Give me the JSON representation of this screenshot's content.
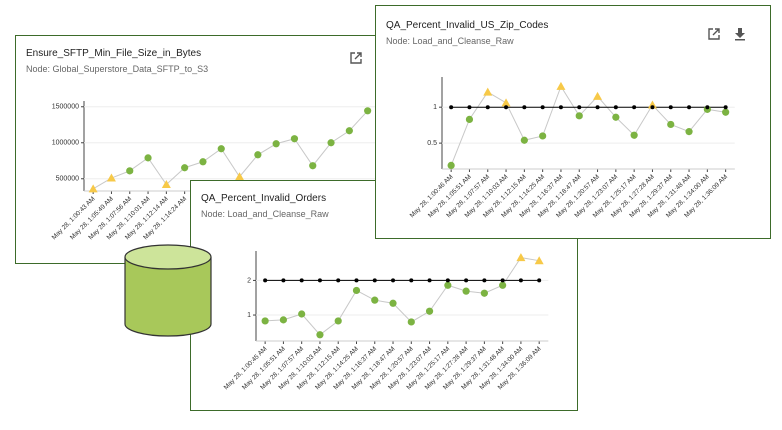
{
  "chart_data": [
    {
      "type": "line",
      "title": "Ensure_SFTP_Min_File_Size_in_Bytes",
      "subtitle": "Node: Global_Superstore_Data_SFTP_to_S3",
      "categories": [
        "May 28, 1:00:43 AM",
        "May 28, 1:05:49 AM",
        "May 28, 1:07:56 AM",
        "May 28, 1:10:01 AM",
        "May 28, 1:12:14 AM",
        "May 28, 1:14:24 AM",
        null,
        null,
        null,
        null,
        null,
        null,
        null,
        null,
        null,
        null
      ],
      "series": [
        {
          "color": "#c8c8c8",
          "values": [
            360000,
            510000,
            610000,
            790000,
            420000,
            653000,
            736000,
            917000,
            528000,
            833000,
            986000,
            1056000,
            681000,
            1000000,
            1167000,
            1444000
          ],
          "markers": [
            "triangle",
            "triangle",
            "circle",
            "circle",
            "triangle",
            "circle",
            "circle",
            "circle",
            "triangle",
            "circle",
            "circle",
            "circle",
            "circle",
            "circle",
            "circle",
            "circle"
          ]
        }
      ],
      "marker_colors": {
        "circle": "#7cb342",
        "triangle": "#f7c948",
        "dot": "#000000"
      },
      "ylim": [
        330000,
        1580000
      ],
      "yticks": [
        500000,
        1000000,
        1500000
      ],
      "grid": true
    },
    {
      "type": "line",
      "title": "QA_Percent_Invalid_Orders",
      "subtitle": "Node: Load_and_Cleanse_Raw",
      "categories": [
        "May 28, 1:00:45 AM",
        "May 28, 1:05:51 AM",
        "May 28, 1:07:57 AM",
        "May 28, 1:10:03 AM",
        "May 28, 1:12:15 AM",
        "May 28, 1:14:25 AM",
        "May 28, 1:16:37 AM",
        "May 28, 1:18:47 AM",
        "May 28, 1:20:57 AM",
        "May 28, 1:23:07 AM",
        "May 28, 1:25:17 AM",
        "May 28, 1:27:28 AM",
        "May 28, 1:29:37 AM",
        "May 28, 1:31:48 AM",
        "May 28, 1:34:00 AM",
        "May 28, 1:36:09 AM"
      ],
      "series": [
        {
          "color": "#c8c8c8",
          "values": [
            0.83,
            0.86,
            1.03,
            0.43,
            0.83,
            1.71,
            1.43,
            1.34,
            0.8,
            1.11,
            1.86,
            1.69,
            1.63,
            1.86,
            2.66,
            2.57
          ],
          "markers": [
            "circle",
            "circle",
            "circle",
            "circle",
            "circle",
            "circle",
            "circle",
            "circle",
            "circle",
            "circle",
            "circle",
            "circle",
            "circle",
            "circle",
            "triangle",
            "triangle"
          ]
        },
        {
          "color": "#000000",
          "values": [
            2,
            2,
            2,
            2,
            2,
            2,
            2,
            2,
            2,
            2,
            2,
            2,
            2,
            2,
            2,
            2
          ],
          "marker": "dot"
        }
      ],
      "marker_colors": {
        "circle": "#7cb342",
        "triangle": "#f7c948",
        "dot": "#000000"
      },
      "ylim": [
        0.25,
        2.85
      ],
      "yticks": [
        1,
        2
      ],
      "grid": true
    },
    {
      "type": "line",
      "title": "QA_Percent_Invalid_US_Zip_Codes",
      "subtitle": "Node: Load_and_Cleanse_Raw",
      "categories": [
        "May 28, 1:00:46 AM",
        "May 28, 1:05:51 AM",
        "May 28, 1:07:57 AM",
        "May 28, 1:10:03 AM",
        "May 28, 1:12:15 AM",
        "May 28, 1:14:25 AM",
        "May 28, 1:16:37 AM",
        "May 28, 1:18:47 AM",
        "May 28, 1:20:57 AM",
        "May 28, 1:23:07 AM",
        "May 28, 1:25:17 AM",
        "May 28, 1:27:28 AM",
        "May 28, 1:29:37 AM",
        "May 28, 1:31:48 AM",
        "May 28, 1:34:00 AM",
        "May 28, 1:36:09 AM"
      ],
      "series": [
        {
          "color": "#c8c8c8",
          "values": [
            0.19,
            0.83,
            1.21,
            1.06,
            0.54,
            0.6,
            1.29,
            0.88,
            1.15,
            0.86,
            0.61,
            1.03,
            0.76,
            0.66,
            0.97,
            0.93
          ],
          "markers": [
            "circle",
            "circle",
            "triangle",
            "triangle",
            "circle",
            "circle",
            "triangle",
            "circle",
            "triangle",
            "circle",
            "circle",
            "triangle",
            "circle",
            "circle",
            "circle",
            "circle"
          ]
        },
        {
          "color": "#000000",
          "values": [
            1,
            1,
            1,
            1,
            1,
            1,
            1,
            1,
            1,
            1,
            1,
            1,
            1,
            1,
            1,
            1
          ],
          "marker": "dot"
        }
      ],
      "marker_colors": {
        "circle": "#7cb342",
        "triangle": "#f7c948",
        "dot": "#000000"
      },
      "ylim": [
        0.14,
        1.42
      ],
      "yticks": [
        0.5,
        1
      ],
      "grid": true
    }
  ]
}
